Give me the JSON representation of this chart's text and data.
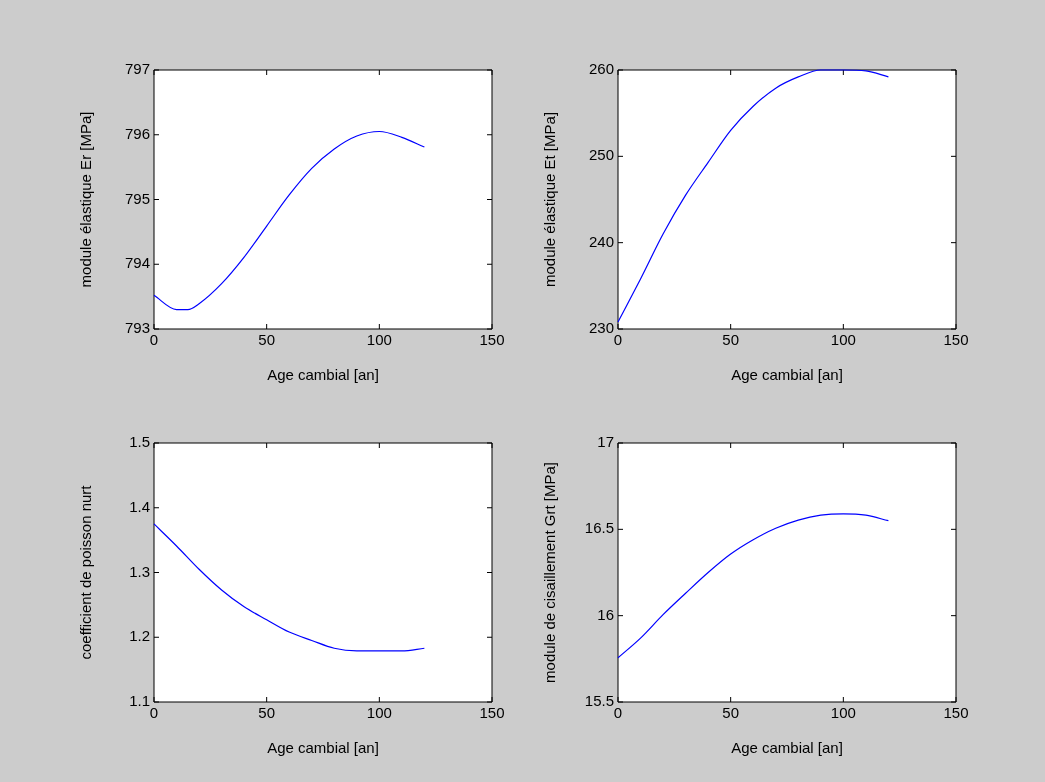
{
  "chart_data": [
    {
      "type": "line",
      "xlabel": "Age cambial [an]",
      "ylabel": "module élastique Er [MPa]",
      "x": [
        0,
        10,
        15,
        20,
        30,
        40,
        50,
        60,
        70,
        80,
        90,
        100,
        110,
        120
      ],
      "xlim": [
        0,
        150
      ],
      "xticks": [
        0,
        50,
        100,
        150
      ],
      "ylim": [
        793,
        797
      ],
      "yticks": [
        793,
        794,
        795,
        796,
        797
      ],
      "grid": false,
      "series": [
        {
          "color": "#0000ff",
          "values": [
            793.52,
            793.3,
            793.3,
            793.39,
            793.7,
            794.11,
            794.59,
            795.07,
            795.48,
            795.78,
            795.98,
            796.05,
            795.96,
            795.81
          ]
        }
      ]
    },
    {
      "type": "line",
      "xlabel": "Age cambial [an]",
      "ylabel": "module élastique Et [MPa]",
      "x": [
        0,
        10,
        20,
        30,
        40,
        50,
        60,
        70,
        80,
        90,
        100,
        110,
        120
      ],
      "xlim": [
        0,
        150
      ],
      "xticks": [
        0,
        50,
        100,
        150
      ],
      "ylim": [
        230,
        260
      ],
      "yticks": [
        230,
        240,
        250,
        260
      ],
      "grid": false,
      "series": [
        {
          "color": "#0000ff",
          "values": [
            230.8,
            235.8,
            241.0,
            245.5,
            249.3,
            253.0,
            255.8,
            257.9,
            259.2,
            260.0,
            260.0,
            259.9,
            259.2
          ]
        }
      ]
    },
    {
      "type": "line",
      "xlabel": "Age cambial [an]",
      "ylabel": "coefficient de poisson nurt",
      "x": [
        0,
        10,
        20,
        30,
        40,
        50,
        60,
        70,
        80,
        90,
        100,
        110,
        120
      ],
      "xlim": [
        0,
        150
      ],
      "xticks": [
        0,
        50,
        100,
        150
      ],
      "ylim": [
        1.1,
        1.5
      ],
      "yticks": [
        1.1,
        1.2,
        1.3,
        1.4,
        1.5
      ],
      "grid": false,
      "series": [
        {
          "color": "#0000ff",
          "values": [
            1.375,
            1.341,
            1.305,
            1.273,
            1.247,
            1.227,
            1.208,
            1.195,
            1.183,
            1.179,
            1.179,
            1.179,
            1.183
          ]
        }
      ]
    },
    {
      "type": "line",
      "xlabel": "Age cambial [an]",
      "ylabel": "module de cisaillement Grt [MPa]",
      "x": [
        0,
        10,
        20,
        30,
        40,
        50,
        60,
        70,
        80,
        90,
        100,
        110,
        120
      ],
      "xlim": [
        0,
        150
      ],
      "xticks": [
        0,
        50,
        100,
        150
      ],
      "ylim": [
        15.5,
        17
      ],
      "yticks": [
        15.5,
        16,
        16.5,
        17
      ],
      "grid": false,
      "series": [
        {
          "color": "#0000ff",
          "values": [
            15.756,
            15.87,
            16.006,
            16.13,
            16.25,
            16.357,
            16.44,
            16.506,
            16.553,
            16.582,
            16.59,
            16.582,
            16.55
          ]
        }
      ]
    }
  ]
}
